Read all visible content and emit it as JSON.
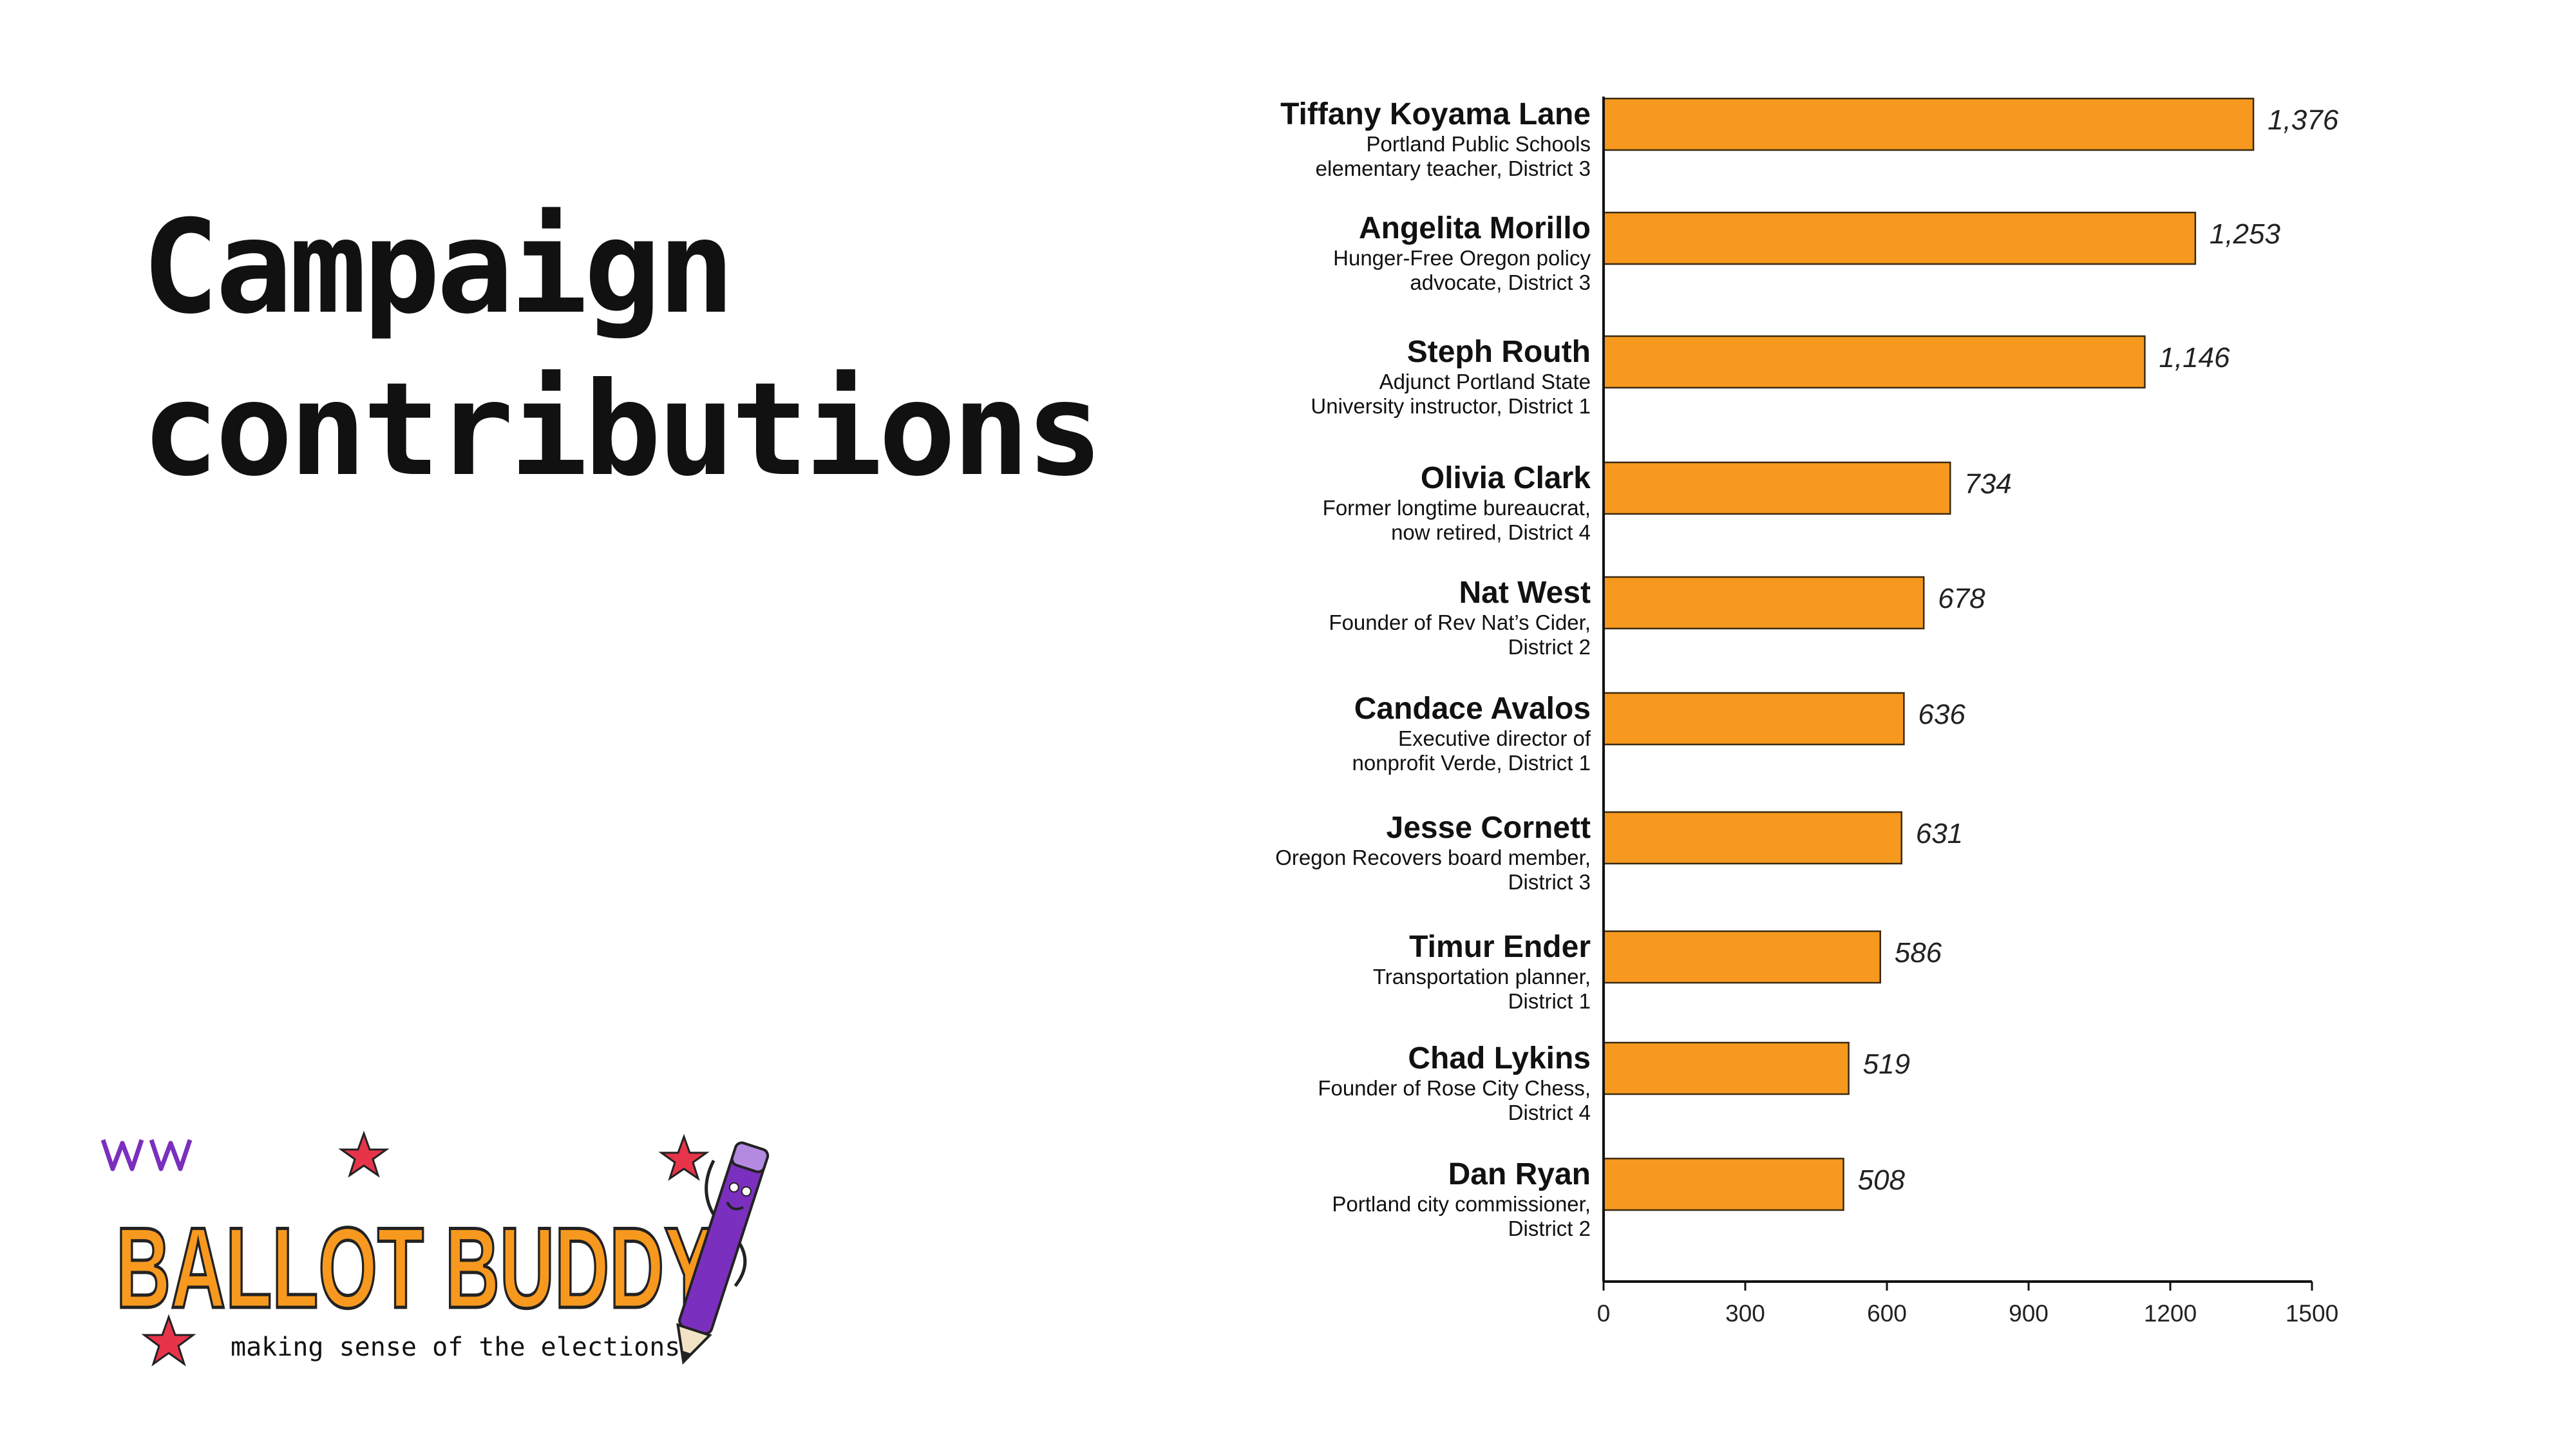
{
  "page": {
    "title_line1": "Campaign",
    "title_line2": "contributions"
  },
  "logo": {
    "name": "BALLOT BUDDY",
    "tagline": "making sense of the elections",
    "mascot_icon": "pencil-mascot-icon"
  },
  "colors": {
    "bar": "#F7991F",
    "bar_stroke": "#3a2a10",
    "logo_orange": "#F7991F",
    "logo_purple": "#7B2FBE",
    "star_red": "#E8344A"
  },
  "chart_data": {
    "type": "bar",
    "orientation": "horizontal",
    "title": "",
    "xlabel": "",
    "ylabel": "",
    "xlim": [
      0,
      1500
    ],
    "xticks": [
      0,
      300,
      600,
      900,
      1200,
      1500
    ],
    "grid": false,
    "legend": "none",
    "categories": [
      {
        "name": "Tiffany Koyama Lane",
        "desc": [
          "Portland Public Schools",
          "elementary teacher, District 3"
        ]
      },
      {
        "name": "Angelita Morillo",
        "desc": [
          "Hunger-Free Oregon policy",
          "advocate, District 3"
        ]
      },
      {
        "name": "Steph Routh",
        "desc": [
          "Adjunct Portland State",
          "University instructor, District 1"
        ]
      },
      {
        "name": "Olivia Clark",
        "desc": [
          "Former longtime bureaucrat,",
          "now retired, District 4"
        ]
      },
      {
        "name": "Nat West",
        "desc": [
          "Founder of Rev Nat’s Cider,",
          "District 2"
        ]
      },
      {
        "name": "Candace Avalos",
        "desc": [
          "Executive director of",
          "nonprofit Verde, District 1"
        ]
      },
      {
        "name": "Jesse Cornett",
        "desc": [
          "Oregon Recovers board member,",
          "District 3"
        ]
      },
      {
        "name": "Timur Ender",
        "desc": [
          "Transportation planner,",
          "District 1"
        ]
      },
      {
        "name": "Chad Lykins",
        "desc": [
          "Founder of Rose City Chess,",
          "District 4"
        ]
      },
      {
        "name": "Dan Ryan",
        "desc": [
          "Portland city commissioner,",
          "District 2"
        ]
      }
    ],
    "values": [
      1376,
      1253,
      1146,
      734,
      678,
      636,
      631,
      586,
      519,
      508
    ],
    "value_labels": [
      "1,376",
      "1,253",
      "1,146",
      "734",
      "678",
      "636",
      "631",
      "586",
      "519",
      "508"
    ]
  }
}
